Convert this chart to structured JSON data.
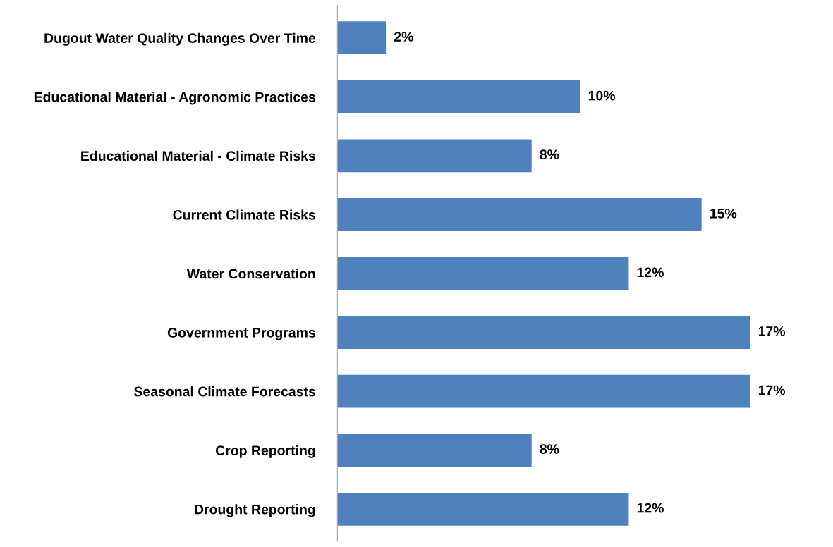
{
  "chart_data": {
    "type": "bar",
    "orientation": "horizontal",
    "tick_labels": "y",
    "categories": [
      "Dugout Water Quality Changes Over Time",
      "Educational Material - Agronomic Practices",
      "Educational Material - Climate Risks",
      "Current Climate Risks",
      "Water Conservation",
      "Government Programs",
      "Seasonal Climate Forecasts",
      "Crop Reporting",
      "Drought Reporting"
    ],
    "values": [
      2,
      10,
      8,
      15,
      12,
      17,
      17,
      8,
      12
    ],
    "value_labels": [
      "2%",
      "10%",
      "8%",
      "15%",
      "12%",
      "17%",
      "17%",
      "8%",
      "12%"
    ],
    "color": "#4f81bd",
    "grid": false,
    "legend": false
  }
}
